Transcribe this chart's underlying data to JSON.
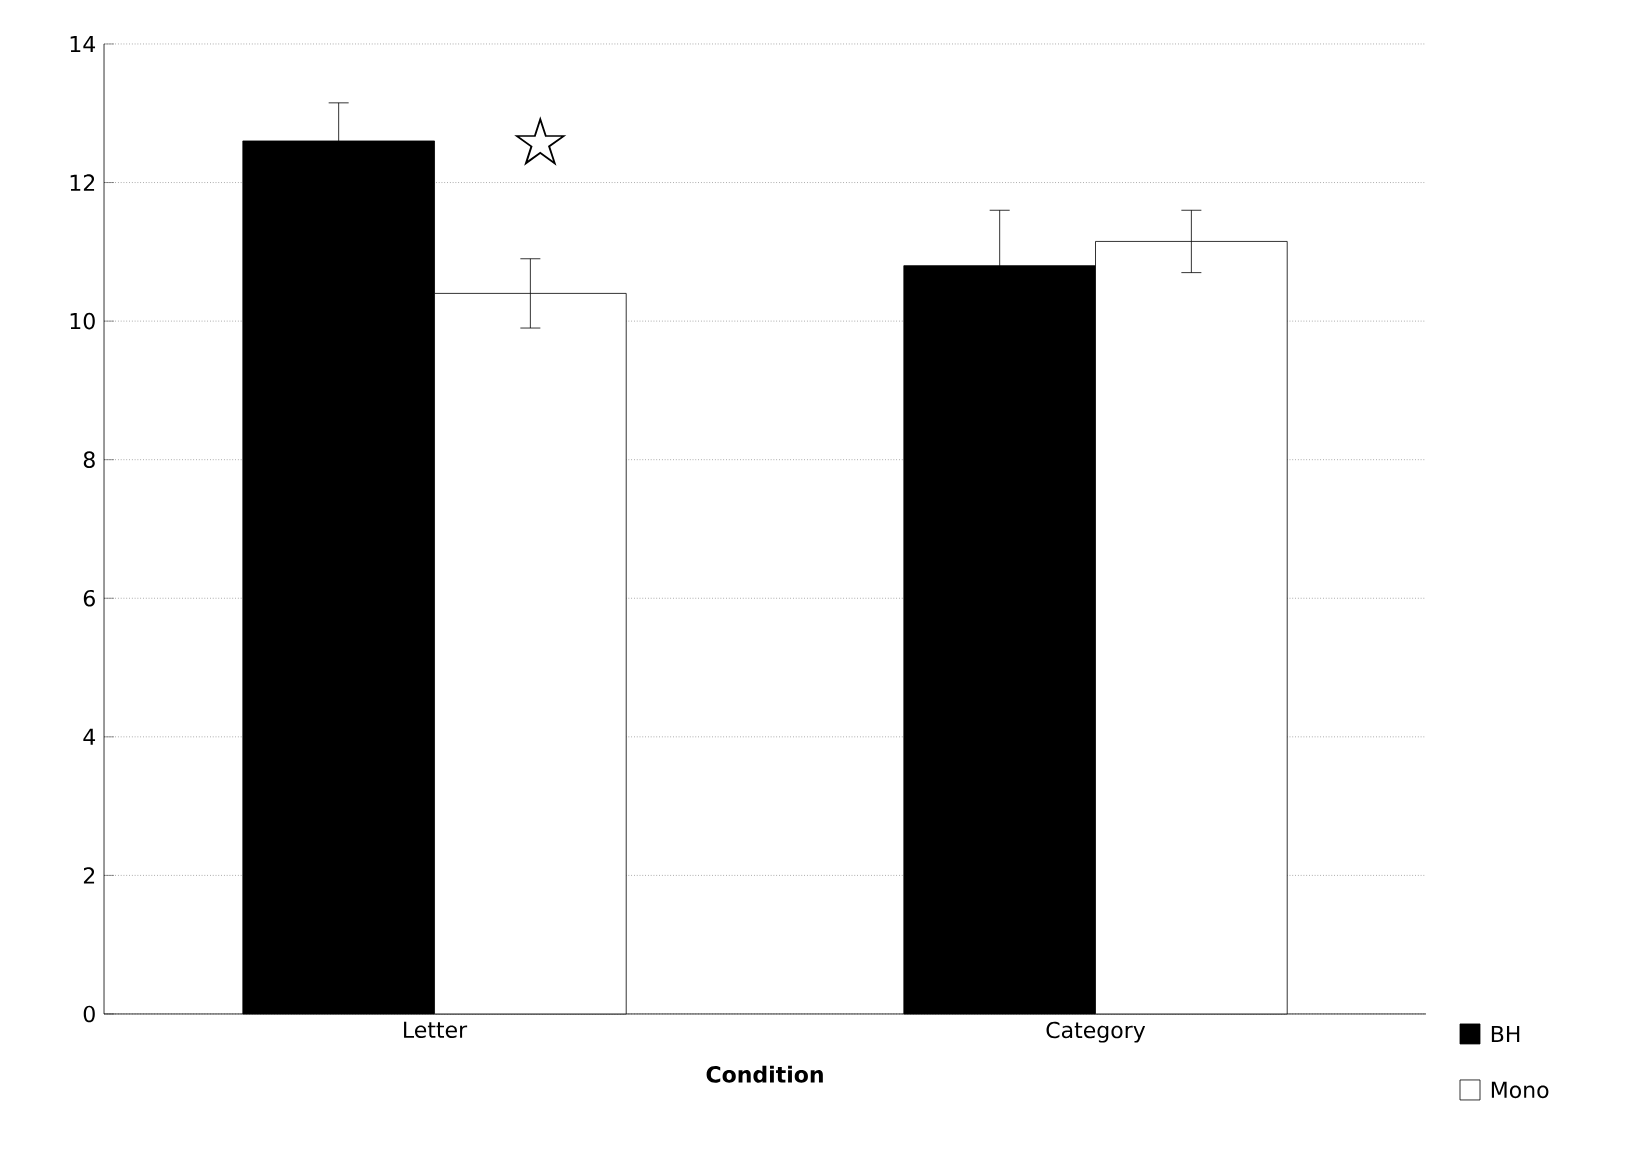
{
  "chart_data": {
    "type": "bar",
    "xlabel": "Condition",
    "categories": [
      "Letter",
      "Category"
    ],
    "series": [
      {
        "name": "BH",
        "color": "#000000",
        "values": [
          12.6,
          10.8
        ],
        "errors": [
          0.55,
          0.8
        ]
      },
      {
        "name": "Mono",
        "color": "#ffffff",
        "values": [
          10.4,
          11.15
        ],
        "errors": [
          0.5,
          0.45
        ]
      }
    ],
    "ylim": [
      0,
      14
    ],
    "yticks": [
      0,
      2,
      4,
      6,
      8,
      10,
      12,
      14
    ],
    "grid": "y",
    "legend": "bottom right",
    "annotations": [
      "☆"
    ]
  }
}
